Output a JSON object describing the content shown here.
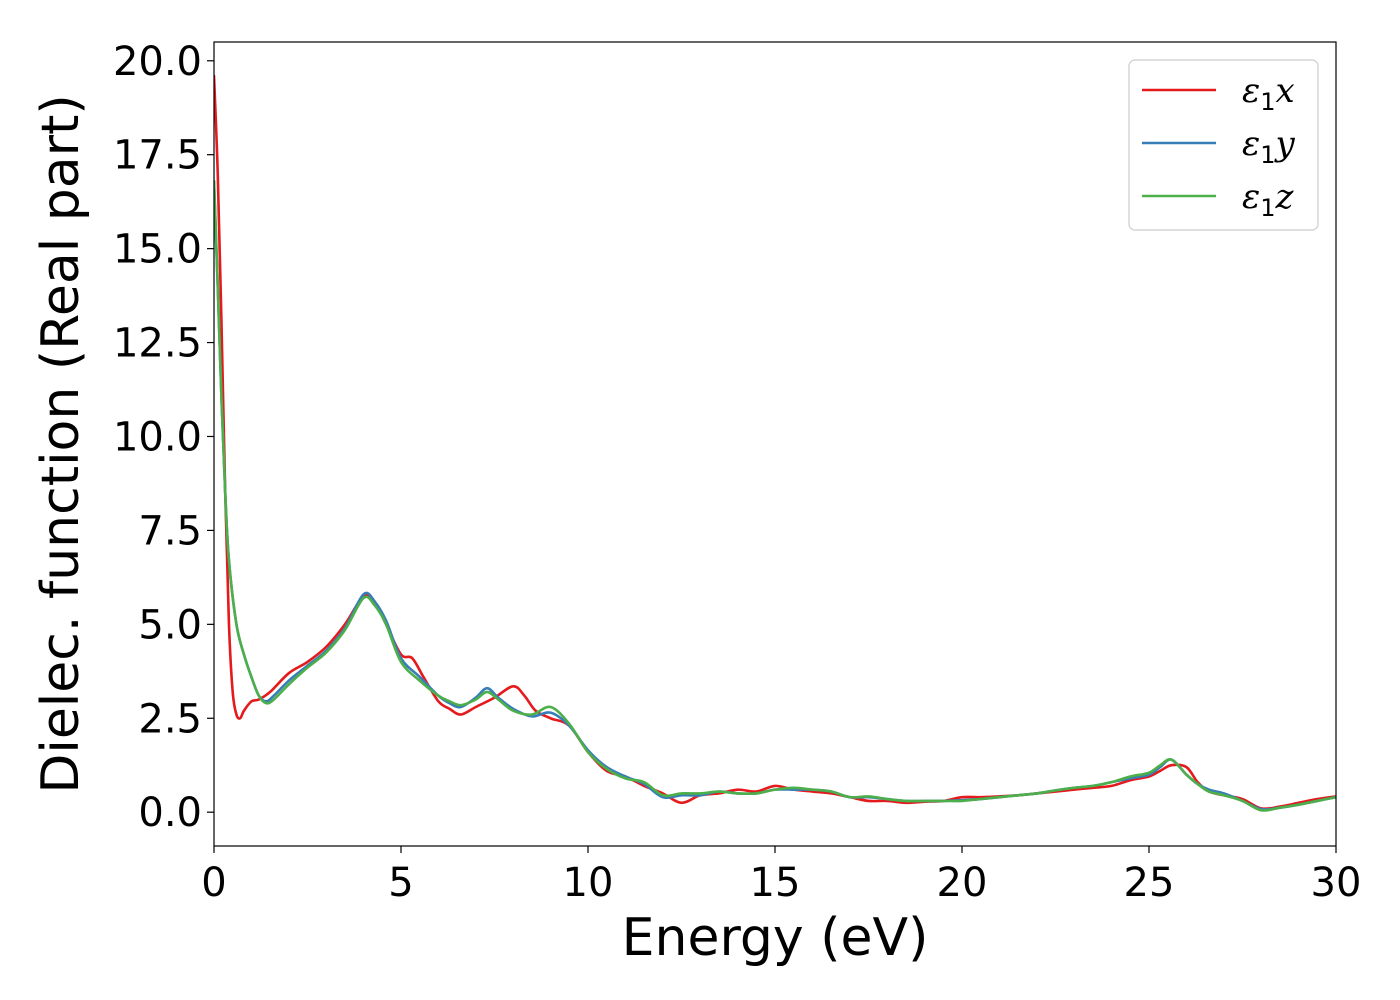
{
  "chart_data": {
    "type": "line",
    "title": "",
    "xlabel": "Energy (eV)",
    "ylabel": "Dielec. function (Real part)",
    "xlim": [
      0,
      30
    ],
    "ylim": [
      -0.9,
      20.5
    ],
    "xticks": [
      0,
      5,
      10,
      15,
      20,
      25,
      30
    ],
    "xtick_labels": [
      "0",
      "5",
      "10",
      "15",
      "20",
      "25",
      "30"
    ],
    "yticks": [
      0.0,
      2.5,
      5.0,
      7.5,
      10.0,
      12.5,
      15.0,
      17.5,
      20.0
    ],
    "ytick_labels": [
      "0.0",
      "2.5",
      "5.0",
      "7.5",
      "10.0",
      "12.5",
      "15.0",
      "17.5",
      "20.0"
    ],
    "grid": false,
    "legend_position": "top-right",
    "series": [
      {
        "name": "ε1x",
        "legend_base": "ε",
        "legend_sub": "1",
        "legend_tail": "x",
        "color": "#e41a1c",
        "x": [
          0,
          0.1,
          0.2,
          0.3,
          0.4,
          0.5,
          0.6,
          0.7,
          0.8,
          1.0,
          1.2,
          1.5,
          2.0,
          2.5,
          3.0,
          3.5,
          4.0,
          4.3,
          4.6,
          5.0,
          5.3,
          5.6,
          6.0,
          6.3,
          6.6,
          7.0,
          7.5,
          8.0,
          8.3,
          8.6,
          9.0,
          9.5,
          10.0,
          10.5,
          11.0,
          11.5,
          12.0,
          12.5,
          13.0,
          13.5,
          14.0,
          14.5,
          15.0,
          15.5,
          16.0,
          16.5,
          17.0,
          17.5,
          18.0,
          18.5,
          19.0,
          19.5,
          20.0,
          20.5,
          21.0,
          21.5,
          22.0,
          22.5,
          23.0,
          23.5,
          24.0,
          24.5,
          25.0,
          25.3,
          25.6,
          26.0,
          26.3,
          26.6,
          27.0,
          27.5,
          28.0,
          28.5,
          29.0,
          29.5,
          30.0
        ],
        "y": [
          19.6,
          17.0,
          13.0,
          8.5,
          5.0,
          3.2,
          2.6,
          2.5,
          2.7,
          2.95,
          3.0,
          3.2,
          3.7,
          4.0,
          4.4,
          5.0,
          5.75,
          5.6,
          5.0,
          4.2,
          4.1,
          3.6,
          2.95,
          2.75,
          2.6,
          2.8,
          3.05,
          3.35,
          3.1,
          2.7,
          2.5,
          2.3,
          1.6,
          1.1,
          0.95,
          0.7,
          0.5,
          0.25,
          0.45,
          0.5,
          0.6,
          0.55,
          0.7,
          0.6,
          0.55,
          0.5,
          0.4,
          0.3,
          0.3,
          0.25,
          0.28,
          0.3,
          0.4,
          0.4,
          0.42,
          0.45,
          0.5,
          0.55,
          0.6,
          0.65,
          0.7,
          0.85,
          0.95,
          1.1,
          1.25,
          1.2,
          0.8,
          0.55,
          0.45,
          0.35,
          0.1,
          0.15,
          0.25,
          0.35,
          0.42
        ]
      },
      {
        "name": "ε1y",
        "legend_base": "ε",
        "legend_sub": "1",
        "legend_tail": "y",
        "color": "#377eb8",
        "x": [
          0,
          0.1,
          0.2,
          0.3,
          0.4,
          0.6,
          0.8,
          1.0,
          1.2,
          1.4,
          1.6,
          2.0,
          2.5,
          3.0,
          3.5,
          4.0,
          4.3,
          4.6,
          5.0,
          5.5,
          6.0,
          6.3,
          6.6,
          7.0,
          7.3,
          7.6,
          8.0,
          8.5,
          9.0,
          9.5,
          10.0,
          10.5,
          11.0,
          11.5,
          12.0,
          12.5,
          13.0,
          13.5,
          14.0,
          14.5,
          15.0,
          15.5,
          16.0,
          16.5,
          17.0,
          17.5,
          18.0,
          18.5,
          19.0,
          19.5,
          20.0,
          20.5,
          21.0,
          21.5,
          22.0,
          22.5,
          23.0,
          23.5,
          24.0,
          24.5,
          25.0,
          25.3,
          25.6,
          26.0,
          26.3,
          26.6,
          27.0,
          27.5,
          28.0,
          28.5,
          29.0,
          29.5,
          30.0
        ],
        "y": [
          16.8,
          14.0,
          11.0,
          8.5,
          6.7,
          5.0,
          4.2,
          3.6,
          3.1,
          2.95,
          3.1,
          3.5,
          3.9,
          4.3,
          4.9,
          5.8,
          5.6,
          5.1,
          4.1,
          3.6,
          3.1,
          2.9,
          2.8,
          3.05,
          3.3,
          3.05,
          2.75,
          2.55,
          2.65,
          2.3,
          1.65,
          1.2,
          0.95,
          0.75,
          0.4,
          0.45,
          0.45,
          0.55,
          0.5,
          0.5,
          0.6,
          0.6,
          0.6,
          0.55,
          0.4,
          0.4,
          0.35,
          0.3,
          0.3,
          0.3,
          0.32,
          0.35,
          0.4,
          0.45,
          0.5,
          0.58,
          0.65,
          0.7,
          0.8,
          0.9,
          1.0,
          1.2,
          1.4,
          1.0,
          0.75,
          0.6,
          0.5,
          0.3,
          0.08,
          0.12,
          0.2,
          0.3,
          0.4
        ]
      },
      {
        "name": "ε1z",
        "legend_base": "ε",
        "legend_sub": "1",
        "legend_tail": "z",
        "color": "#4daf4a",
        "x": [
          0,
          0.1,
          0.2,
          0.3,
          0.4,
          0.6,
          0.8,
          1.0,
          1.2,
          1.4,
          1.6,
          2.0,
          2.5,
          3.0,
          3.5,
          4.0,
          4.3,
          4.6,
          5.0,
          5.5,
          6.0,
          6.3,
          6.6,
          7.0,
          7.3,
          7.6,
          8.0,
          8.5,
          9.0,
          9.5,
          10.0,
          10.5,
          11.0,
          11.5,
          12.0,
          12.5,
          13.0,
          13.5,
          14.0,
          14.5,
          15.0,
          15.5,
          16.0,
          16.5,
          17.0,
          17.5,
          18.0,
          18.5,
          19.0,
          19.5,
          20.0,
          20.5,
          21.0,
          21.5,
          22.0,
          22.5,
          23.0,
          23.5,
          24.0,
          24.5,
          25.0,
          25.3,
          25.6,
          26.0,
          26.3,
          26.6,
          27.0,
          27.5,
          28.0,
          28.5,
          29.0,
          29.5,
          30.0
        ],
        "y": [
          16.8,
          14.0,
          11.0,
          8.5,
          6.7,
          5.0,
          4.2,
          3.6,
          3.1,
          2.9,
          3.0,
          3.4,
          3.85,
          4.25,
          4.85,
          5.7,
          5.5,
          5.0,
          4.0,
          3.5,
          3.1,
          2.95,
          2.85,
          3.0,
          3.2,
          3.0,
          2.7,
          2.6,
          2.8,
          2.35,
          1.6,
          1.15,
          0.9,
          0.8,
          0.45,
          0.5,
          0.5,
          0.55,
          0.5,
          0.5,
          0.6,
          0.65,
          0.6,
          0.55,
          0.4,
          0.42,
          0.35,
          0.3,
          0.3,
          0.3,
          0.3,
          0.35,
          0.4,
          0.45,
          0.5,
          0.58,
          0.65,
          0.7,
          0.8,
          0.95,
          1.05,
          1.25,
          1.4,
          1.0,
          0.75,
          0.55,
          0.45,
          0.3,
          0.05,
          0.12,
          0.2,
          0.3,
          0.4
        ]
      }
    ]
  }
}
